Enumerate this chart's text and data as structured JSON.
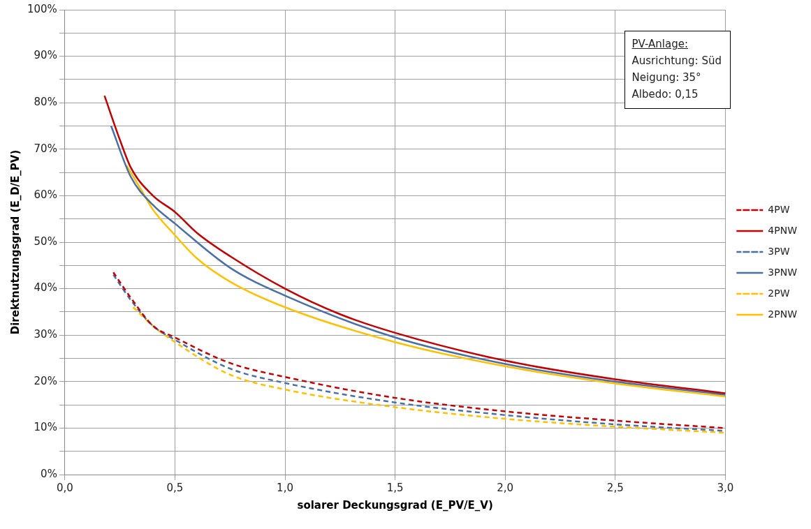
{
  "chart_data": {
    "type": "line",
    "xlabel": "solarer Deckungsgrad (E_PV/E_V)",
    "ylabel": "Direktnutzungsgrad (E_D/E_PV)",
    "annotations": [
      "PV-Anlage:",
      "Ausrichtung:  Süd",
      "Neigung: 35°",
      "Albedo: 0,15"
    ],
    "xlim": [
      0,
      3
    ],
    "ylim": [
      0,
      100
    ],
    "xticks": [
      {
        "value": 0,
        "label": "0,0"
      },
      {
        "value": 0.5,
        "label": "0,5"
      },
      {
        "value": 1,
        "label": "1,0"
      },
      {
        "value": 1.5,
        "label": "1,5"
      },
      {
        "value": 2,
        "label": "2,0"
      },
      {
        "value": 2.5,
        "label": "2,5"
      },
      {
        "value": 3,
        "label": "3,0"
      }
    ],
    "yticks": [
      {
        "value": 0,
        "label": "0%"
      },
      {
        "value": 5,
        "label": null
      },
      {
        "value": 10,
        "label": "10%"
      },
      {
        "value": 15,
        "label": null
      },
      {
        "value": 20,
        "label": "20%"
      },
      {
        "value": 25,
        "label": null
      },
      {
        "value": 30,
        "label": "30%"
      },
      {
        "value": 35,
        "label": null
      },
      {
        "value": 40,
        "label": "40%"
      },
      {
        "value": 45,
        "label": null
      },
      {
        "value": 50,
        "label": "50%"
      },
      {
        "value": 55,
        "label": null
      },
      {
        "value": 60,
        "label": "60%"
      },
      {
        "value": 65,
        "label": null
      },
      {
        "value": 70,
        "label": "70%"
      },
      {
        "value": 75,
        "label": null
      },
      {
        "value": 80,
        "label": "80%"
      },
      {
        "value": 85,
        "label": null
      },
      {
        "value": 90,
        "label": "90%"
      },
      {
        "value": 95,
        "label": null
      },
      {
        "value": 100,
        "label": "100%"
      }
    ],
    "grid": true,
    "legend": "right",
    "marker": "none",
    "series": [
      {
        "name": "4PW",
        "color": "#c00000",
        "line_style": "dashed",
        "x": [
          0.22,
          0.3,
          0.4,
          0.5,
          0.75,
          1.0,
          1.5,
          2.0,
          2.5,
          3.0
        ],
        "values": [
          43.5,
          38,
          32,
          29.5,
          24,
          21,
          16.5,
          13.6,
          11.6,
          10
        ]
      },
      {
        "name": "4PNW",
        "color": "#c00000",
        "line_style": "solid",
        "x": [
          0.18,
          0.25,
          0.3,
          0.4,
          0.5,
          0.6,
          0.75,
          1.0,
          1.25,
          1.5,
          2.0,
          2.5,
          3.0
        ],
        "values": [
          81.5,
          72,
          66,
          60,
          56.5,
          52,
          47,
          40,
          34.5,
          30.5,
          24.5,
          20.5,
          17.5
        ]
      },
      {
        "name": "3PW",
        "color": "#4a6fa5",
        "line_style": "dashed",
        "x": [
          0.22,
          0.3,
          0.4,
          0.5,
          0.75,
          1.0,
          1.5,
          2.0,
          2.5,
          3.0
        ],
        "values": [
          43,
          37.5,
          32,
          29,
          22.8,
          19.7,
          15.5,
          12.8,
          10.8,
          9.4
        ]
      },
      {
        "name": "3PNW",
        "color": "#4a6fa5",
        "line_style": "solid",
        "x": [
          0.21,
          0.3,
          0.4,
          0.5,
          0.75,
          1.0,
          1.5,
          2.0,
          2.5,
          3.0
        ],
        "values": [
          75,
          64,
          58,
          54,
          44.5,
          38.5,
          29.5,
          23.8,
          20,
          17.2
        ]
      },
      {
        "name": "2PW",
        "color": "#ffc000",
        "line_style": "dashed",
        "x": [
          0.31,
          0.4,
          0.5,
          0.75,
          1.0,
          1.5,
          2.0,
          2.5,
          3.0
        ],
        "values": [
          36,
          32,
          28.5,
          21.5,
          18.3,
          14.5,
          12,
          10.3,
          9
        ]
      },
      {
        "name": "2PNW",
        "color": "#ffc000",
        "line_style": "solid",
        "x": [
          0.28,
          0.35,
          0.4,
          0.5,
          0.6,
          0.75,
          1.0,
          1.5,
          2.0,
          2.5,
          3.0
        ],
        "values": [
          66.5,
          61,
          57,
          51.5,
          46.5,
          41.5,
          36,
          28.5,
          23.3,
          19.6,
          16.8
        ]
      }
    ]
  }
}
